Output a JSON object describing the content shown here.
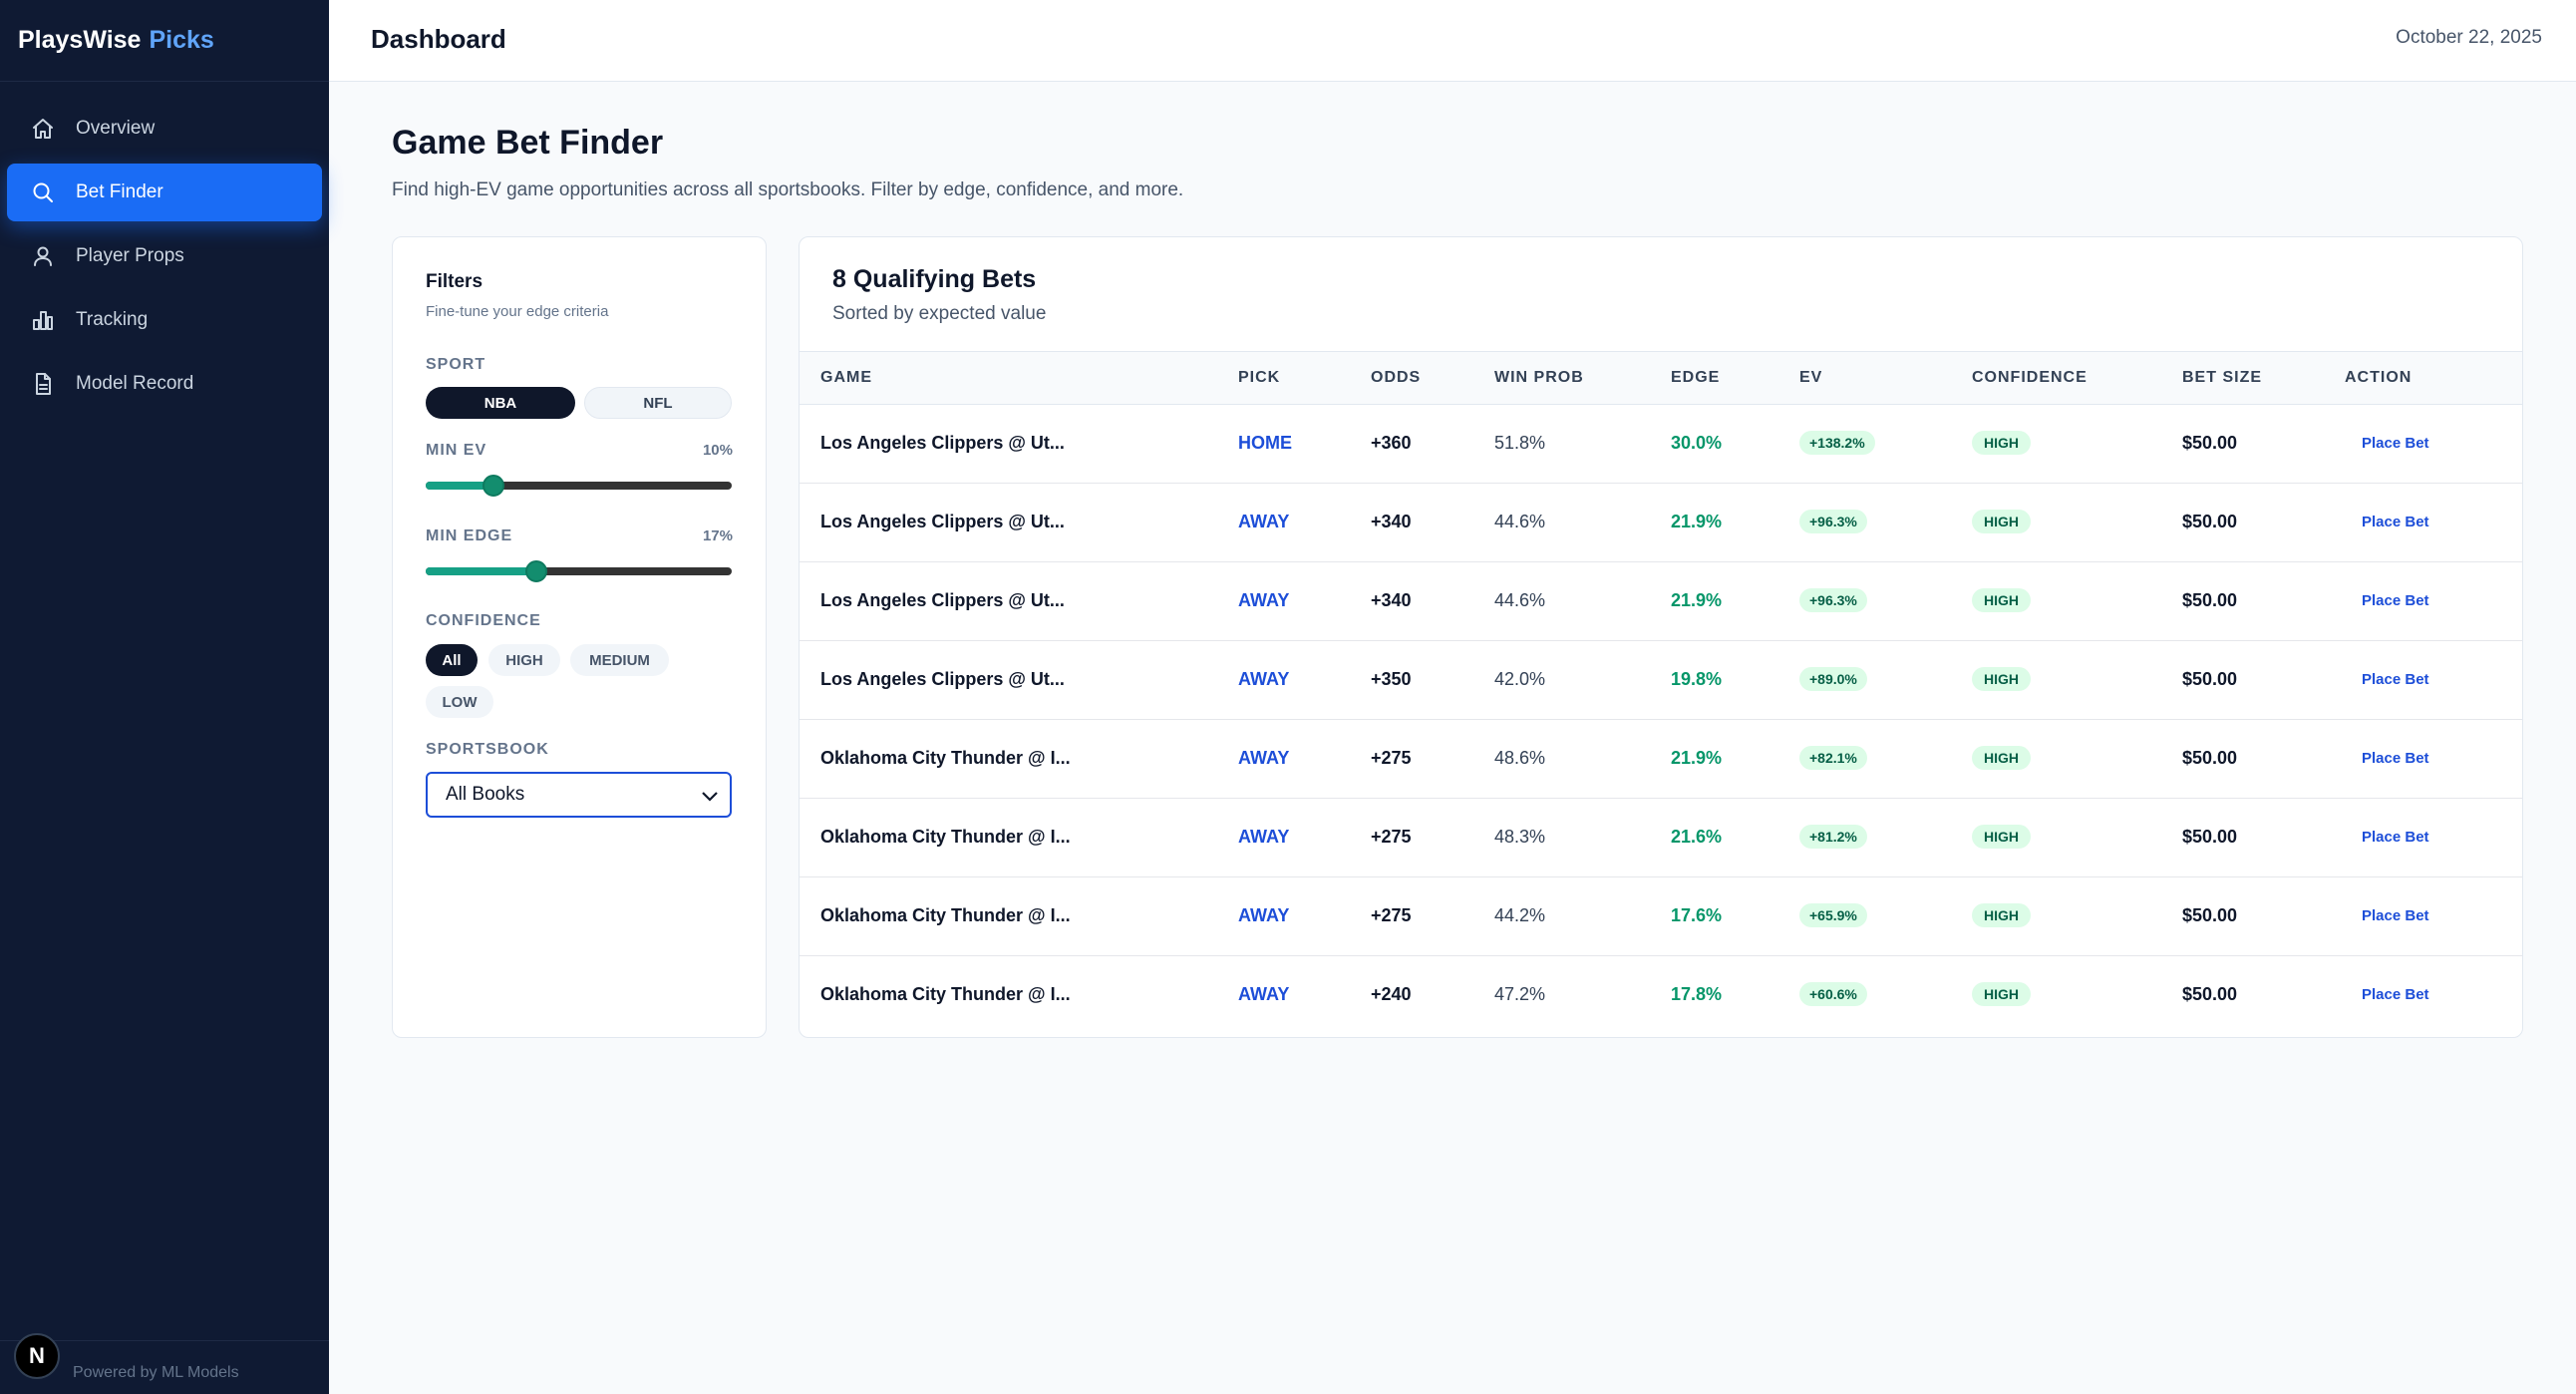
{
  "brand": {
    "name": "PlaysWise",
    "accent": "Picks"
  },
  "sidebar": {
    "items": [
      {
        "label": "Overview",
        "icon": "home-icon"
      },
      {
        "label": "Bet Finder",
        "icon": "search-icon",
        "active": true
      },
      {
        "label": "Player Props",
        "icon": "user-icon"
      },
      {
        "label": "Tracking",
        "icon": "bar-chart-icon"
      },
      {
        "label": "Model Record",
        "icon": "document-icon"
      }
    ],
    "footer": "Powered by ML Models",
    "badge": "N"
  },
  "header": {
    "title": "Dashboard",
    "date": "October 22, 2025"
  },
  "page": {
    "title": "Game Bet Finder",
    "subtitle": "Find high-EV game opportunities across all sportsbooks. Filter by edge, confidence, and more."
  },
  "filters": {
    "title": "Filters",
    "subtitle": "Fine-tune your edge criteria",
    "sport_label": "SPORT",
    "sports": [
      "NBA",
      "NFL"
    ],
    "sport_selected": "NBA",
    "min_ev_label": "MIN EV",
    "min_ev_value": "10%",
    "min_ev_level": 0.22,
    "min_edge_label": "MIN EDGE",
    "min_edge_value": "17%",
    "min_edge_level": 0.36,
    "confidence_label": "CONFIDENCE",
    "confidence_options": [
      "All",
      "HIGH",
      "MEDIUM",
      "LOW"
    ],
    "confidence_selected": "All",
    "sportsbook_label": "SPORTSBOOK",
    "sportsbook_value": "All Books"
  },
  "results": {
    "title": "8 Qualifying Bets",
    "subtitle": "Sorted by expected value",
    "columns": [
      "GAME",
      "PICK",
      "ODDS",
      "WIN PROB",
      "EDGE",
      "EV",
      "CONFIDENCE",
      "BET SIZE",
      "ACTION"
    ],
    "rows": [
      {
        "game": "Los Angeles Clippers @ Ut...",
        "pick": "HOME",
        "odds": "+360",
        "win_prob": "51.8%",
        "edge": "30.0%",
        "ev": "+138.2%",
        "confidence": "HIGH",
        "bet_size": "$50.00",
        "action": "Place Bet"
      },
      {
        "game": "Los Angeles Clippers @ Ut...",
        "pick": "AWAY",
        "odds": "+340",
        "win_prob": "44.6%",
        "edge": "21.9%",
        "ev": "+96.3%",
        "confidence": "HIGH",
        "bet_size": "$50.00",
        "action": "Place Bet"
      },
      {
        "game": "Los Angeles Clippers @ Ut...",
        "pick": "AWAY",
        "odds": "+340",
        "win_prob": "44.6%",
        "edge": "21.9%",
        "ev": "+96.3%",
        "confidence": "HIGH",
        "bet_size": "$50.00",
        "action": "Place Bet"
      },
      {
        "game": "Los Angeles Clippers @ Ut...",
        "pick": "AWAY",
        "odds": "+350",
        "win_prob": "42.0%",
        "edge": "19.8%",
        "ev": "+89.0%",
        "confidence": "HIGH",
        "bet_size": "$50.00",
        "action": "Place Bet"
      },
      {
        "game": "Oklahoma City Thunder @ I...",
        "pick": "AWAY",
        "odds": "+275",
        "win_prob": "48.6%",
        "edge": "21.9%",
        "ev": "+82.1%",
        "confidence": "HIGH",
        "bet_size": "$50.00",
        "action": "Place Bet"
      },
      {
        "game": "Oklahoma City Thunder @ I...",
        "pick": "AWAY",
        "odds": "+275",
        "win_prob": "48.3%",
        "edge": "21.6%",
        "ev": "+81.2%",
        "confidence": "HIGH",
        "bet_size": "$50.00",
        "action": "Place Bet"
      },
      {
        "game": "Oklahoma City Thunder @ I...",
        "pick": "AWAY",
        "odds": "+275",
        "win_prob": "44.2%",
        "edge": "17.6%",
        "ev": "+65.9%",
        "confidence": "HIGH",
        "bet_size": "$50.00",
        "action": "Place Bet"
      },
      {
        "game": "Oklahoma City Thunder @ I...",
        "pick": "AWAY",
        "odds": "+240",
        "win_prob": "47.2%",
        "edge": "17.8%",
        "ev": "+60.6%",
        "confidence": "HIGH",
        "bet_size": "$50.00",
        "action": "Place Bet"
      }
    ]
  },
  "colors": {
    "sidebar_bg": "#0f1a33",
    "accent": "#1a6cf5",
    "brand_accent": "#60a5fa",
    "positive": "#059669",
    "slider_fill": "#16a085"
  }
}
